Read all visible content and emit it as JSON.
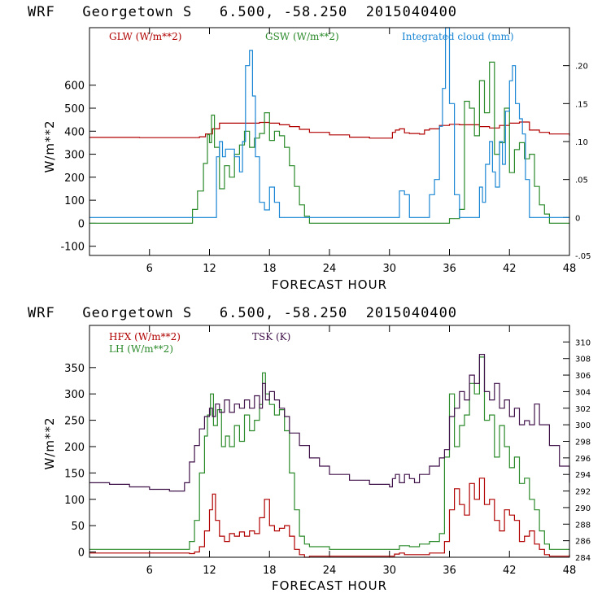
{
  "chart_data": [
    {
      "type": "line",
      "title": "WRF   Georgetown S   6.500, -58.250  2015040400",
      "xlabel": "FORECAST HOUR",
      "ylabel": "W/m**2",
      "xlim": [
        0,
        48
      ],
      "ylim": [
        -140,
        850
      ],
      "y2lim": [
        -0.05,
        0.25
      ],
      "yticks": [
        -100,
        0,
        100,
        200,
        300,
        400,
        500,
        600
      ],
      "y2ticks": [
        -0.05,
        0,
        0.05,
        0.1,
        0.15,
        0.2
      ],
      "y2ticklabels": [
        "-.05",
        "0",
        ".05",
        ".10",
        ".15",
        ".20"
      ],
      "xticks": [
        6,
        12,
        18,
        24,
        30,
        36,
        42,
        48
      ],
      "series": [
        {
          "name": "GLW (W/m**2)",
          "color": "#b00000",
          "axis": "left",
          "x": [
            0,
            5,
            10,
            11,
            11.6,
            12.3,
            13,
            17,
            18,
            19,
            20,
            21,
            22,
            24,
            26,
            28,
            30,
            30.3,
            30.6,
            31,
            31.5,
            32,
            33,
            33.5,
            34,
            35,
            36,
            37,
            38,
            39,
            40,
            41,
            42,
            43,
            44,
            45,
            46,
            48
          ],
          "y": [
            373,
            372,
            372,
            376,
            388,
            410,
            435,
            438,
            435,
            428,
            420,
            408,
            395,
            384,
            374,
            370,
            370,
            395,
            405,
            410,
            393,
            390,
            387,
            405,
            410,
            425,
            430,
            428,
            428,
            420,
            414,
            425,
            435,
            440,
            405,
            395,
            388,
            380
          ]
        },
        {
          "name": "GSW (W/m**2)",
          "color": "#2a8a2a",
          "axis": "left",
          "x": [
            0,
            9.8,
            10.3,
            10.8,
            11.4,
            11.8,
            12,
            12.2,
            12.5,
            13,
            13.5,
            14,
            14.5,
            15,
            15.5,
            16,
            16.5,
            17,
            17.5,
            18,
            18.5,
            19,
            19.5,
            20,
            20.5,
            21,
            21.5,
            22,
            36,
            37,
            37.5,
            38,
            38.5,
            39,
            39.5,
            40,
            40.5,
            41,
            41.5,
            42,
            42.5,
            43,
            43.5,
            44,
            44.5,
            45,
            45.5,
            46,
            48
          ],
          "y": [
            0,
            0,
            60,
            140,
            260,
            385,
            350,
            470,
            330,
            150,
            250,
            200,
            300,
            340,
            400,
            330,
            370,
            390,
            480,
            360,
            400,
            380,
            330,
            250,
            160,
            80,
            30,
            0,
            20,
            60,
            530,
            500,
            380,
            620,
            480,
            700,
            300,
            350,
            500,
            220,
            320,
            350,
            280,
            300,
            160,
            80,
            40,
            0,
            0
          ]
        },
        {
          "name": "Integrated cloud (mm)",
          "color": "#1a86d4",
          "axis": "right",
          "x": [
            0,
            12.4,
            12.7,
            13,
            13.3,
            13.6,
            14,
            14.5,
            15,
            15.3,
            15.6,
            16,
            16.3,
            16.6,
            17,
            17.5,
            18,
            18.5,
            19,
            20,
            31,
            31.5,
            32,
            33,
            34,
            34.5,
            35,
            35.3,
            35.6,
            36,
            36.5,
            37,
            38.5,
            39,
            39.3,
            39.6,
            40,
            40.3,
            40.6,
            41,
            41.3,
            41.6,
            42,
            42.3,
            42.6,
            43,
            43.3,
            43.6,
            44,
            48
          ],
          "y": [
            0,
            0,
            0.08,
            0.1,
            0.08,
            0.09,
            0.09,
            0.08,
            0.06,
            0.1,
            0.2,
            0.22,
            0.16,
            0.08,
            0.02,
            0.01,
            0.04,
            0.02,
            0,
            0,
            0.035,
            0.03,
            0,
            0,
            0.03,
            0.05,
            0.12,
            0.17,
            0.25,
            0.15,
            0.03,
            0,
            0,
            0.04,
            0.02,
            0.07,
            0.1,
            0.06,
            0.04,
            0.1,
            0.07,
            0.14,
            0.18,
            0.2,
            0.15,
            0.13,
            0.11,
            0.05,
            0,
            0
          ]
        }
      ]
    },
    {
      "type": "line",
      "title": "WRF   Georgetown S   6.500, -58.250  2015040400",
      "xlabel": "FORECAST HOUR",
      "ylabel": "W/m**2",
      "xlim": [
        0,
        48
      ],
      "ylim": [
        -10,
        430
      ],
      "y2lim": [
        284,
        312
      ],
      "yticks": [
        0,
        50,
        100,
        150,
        200,
        250,
        300,
        350
      ],
      "y2ticks": [
        284,
        286,
        288,
        290,
        292,
        294,
        296,
        298,
        300,
        302,
        304,
        306,
        308,
        310
      ],
      "xticks": [
        6,
        12,
        18,
        24,
        30,
        36,
        42,
        48
      ],
      "series": [
        {
          "name": "HFX (W/m**2)",
          "color": "#b00000",
          "axis": "left",
          "x": [
            0,
            10,
            10.5,
            11,
            11.5,
            12,
            12.3,
            12.6,
            13,
            13.5,
            14,
            14.5,
            15,
            15.5,
            16,
            16.5,
            17,
            17.5,
            18,
            18.5,
            19,
            19.5,
            20,
            20.5,
            21,
            21.5,
            22,
            30,
            30.5,
            31,
            31.5,
            32,
            34,
            35.5,
            36,
            36.5,
            37,
            37.5,
            38,
            38.5,
            39,
            39.5,
            40,
            40.5,
            41,
            41.5,
            42,
            42.5,
            43,
            43.5,
            44,
            44.5,
            45,
            45.5,
            46,
            48
          ],
          "y": [
            -2,
            -3,
            0,
            10,
            40,
            80,
            110,
            60,
            30,
            20,
            35,
            30,
            38,
            30,
            40,
            35,
            65,
            100,
            50,
            40,
            45,
            50,
            30,
            5,
            -5,
            -10,
            -8,
            -8,
            -4,
            -2,
            -5,
            -5,
            -2,
            20,
            80,
            120,
            90,
            70,
            130,
            100,
            140,
            90,
            100,
            60,
            40,
            80,
            70,
            60,
            20,
            30,
            40,
            15,
            5,
            -5,
            -8,
            -5
          ]
        },
        {
          "name": "LH (W/m**2)",
          "color": "#2a8a2a",
          "axis": "left",
          "x": [
            0,
            9.5,
            10,
            10.5,
            11,
            11.5,
            11.8,
            12.1,
            12.4,
            12.8,
            13.2,
            13.6,
            14,
            14.5,
            15,
            15.5,
            16,
            16.5,
            17,
            17.3,
            17.6,
            18,
            18.5,
            19,
            19.5,
            20,
            20.5,
            21,
            21.5,
            22,
            24,
            30,
            31,
            32,
            33,
            34,
            35,
            35.5,
            36,
            36.5,
            37,
            37.5,
            38,
            38.5,
            39,
            39.5,
            40,
            40.5,
            41,
            41.5,
            42,
            42.5,
            43,
            43.5,
            44,
            44.5,
            45,
            45.5,
            46,
            48
          ],
          "y": [
            5,
            5,
            20,
            60,
            150,
            220,
            260,
            300,
            240,
            270,
            200,
            220,
            200,
            240,
            210,
            260,
            230,
            250,
            280,
            340,
            300,
            280,
            260,
            270,
            230,
            150,
            80,
            30,
            15,
            10,
            5,
            5,
            12,
            10,
            15,
            20,
            35,
            180,
            300,
            200,
            240,
            260,
            320,
            300,
            370,
            250,
            260,
            180,
            240,
            200,
            160,
            180,
            130,
            140,
            100,
            80,
            40,
            15,
            5,
            5
          ]
        },
        {
          "name": "TSK (K)",
          "color": "#40124a",
          "axis": "right",
          "x": [
            0,
            2,
            4,
            6,
            8,
            9,
            9.5,
            10,
            10.5,
            11,
            11.5,
            12,
            12.3,
            12.6,
            13,
            13.5,
            14,
            14.5,
            15,
            15.5,
            16,
            16.5,
            17,
            17.3,
            17.6,
            18,
            18.5,
            19,
            19.5,
            20,
            21,
            22,
            23,
            24,
            26,
            28,
            30,
            30.3,
            30.6,
            31,
            31.5,
            32,
            32.5,
            33,
            34,
            35,
            35.5,
            36,
            36.5,
            37,
            37.5,
            38,
            38.5,
            39,
            39.5,
            40,
            40.5,
            41,
            41.5,
            42,
            42.5,
            43,
            43.5,
            44,
            44.5,
            45,
            46,
            47,
            48
          ],
          "y": [
            293,
            292.8,
            292.5,
            292.2,
            292,
            292,
            293,
            295.5,
            297.5,
            299.5,
            301,
            302,
            301,
            302.5,
            301.5,
            303,
            301.5,
            302.5,
            302,
            303,
            302,
            303.5,
            302,
            305,
            303,
            304,
            303,
            302,
            301,
            299,
            297.5,
            296,
            295,
            294,
            293.3,
            292.8,
            292.5,
            293.5,
            294,
            293,
            294,
            293.5,
            293,
            294,
            295,
            296,
            297,
            301,
            302,
            304,
            303,
            306,
            305,
            308.5,
            304,
            303,
            305,
            302,
            303,
            301,
            302,
            300,
            300.5,
            300,
            302.5,
            300,
            297.5,
            295,
            293
          ]
        }
      ]
    }
  ]
}
